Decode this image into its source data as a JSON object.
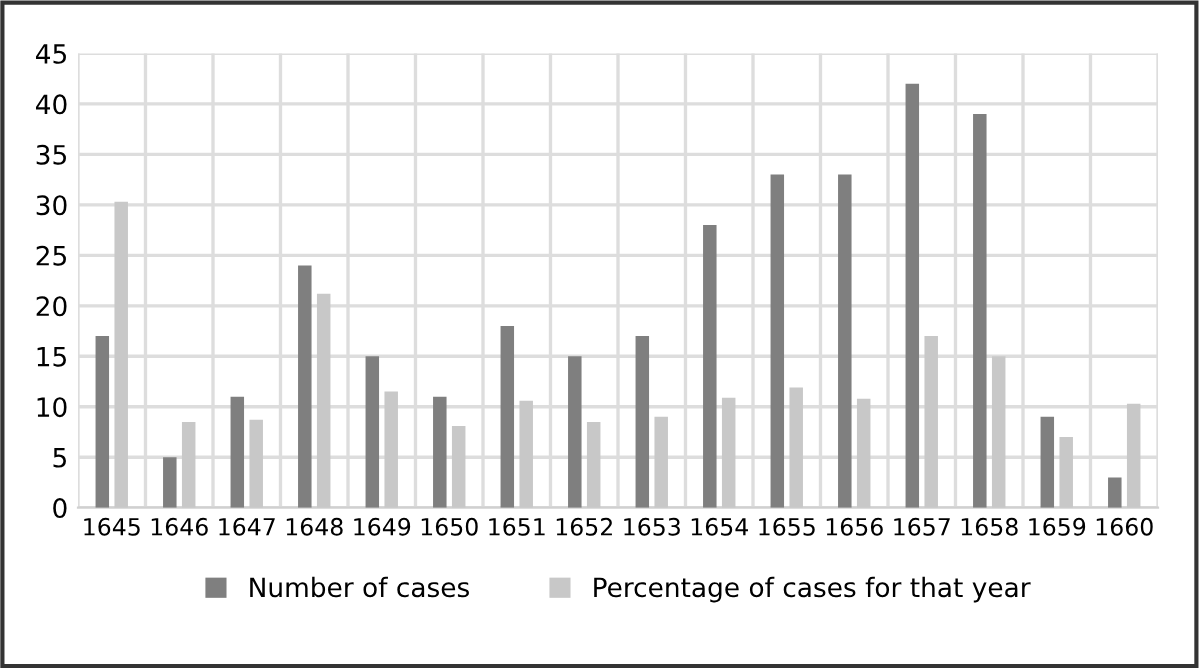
{
  "chart_data": {
    "type": "bar",
    "categories": [
      "1645",
      "1646",
      "1647",
      "1648",
      "1649",
      "1650",
      "1651",
      "1652",
      "1653",
      "1654",
      "1655",
      "1656",
      "1657",
      "1658",
      "1659",
      "1660"
    ],
    "series": [
      {
        "name": "Number of cases",
        "color": "#7f7f7f",
        "values": [
          17,
          5,
          11,
          24,
          15,
          11,
          18,
          15,
          17,
          28,
          33,
          33,
          42,
          39,
          9,
          3
        ]
      },
      {
        "name": "Percentage of cases for that year",
        "color": "#c8c8c8",
        "values": [
          30.3,
          8.5,
          8.7,
          21.2,
          11.5,
          8.1,
          10.6,
          8.5,
          9.0,
          10.9,
          11.9,
          10.8,
          17,
          15,
          7.0,
          10.3
        ]
      }
    ],
    "ylim": [
      0,
      45
    ],
    "yticks": [
      0,
      5,
      10,
      15,
      20,
      25,
      30,
      35,
      40,
      45
    ],
    "grid": true,
    "legend": "bottom"
  }
}
